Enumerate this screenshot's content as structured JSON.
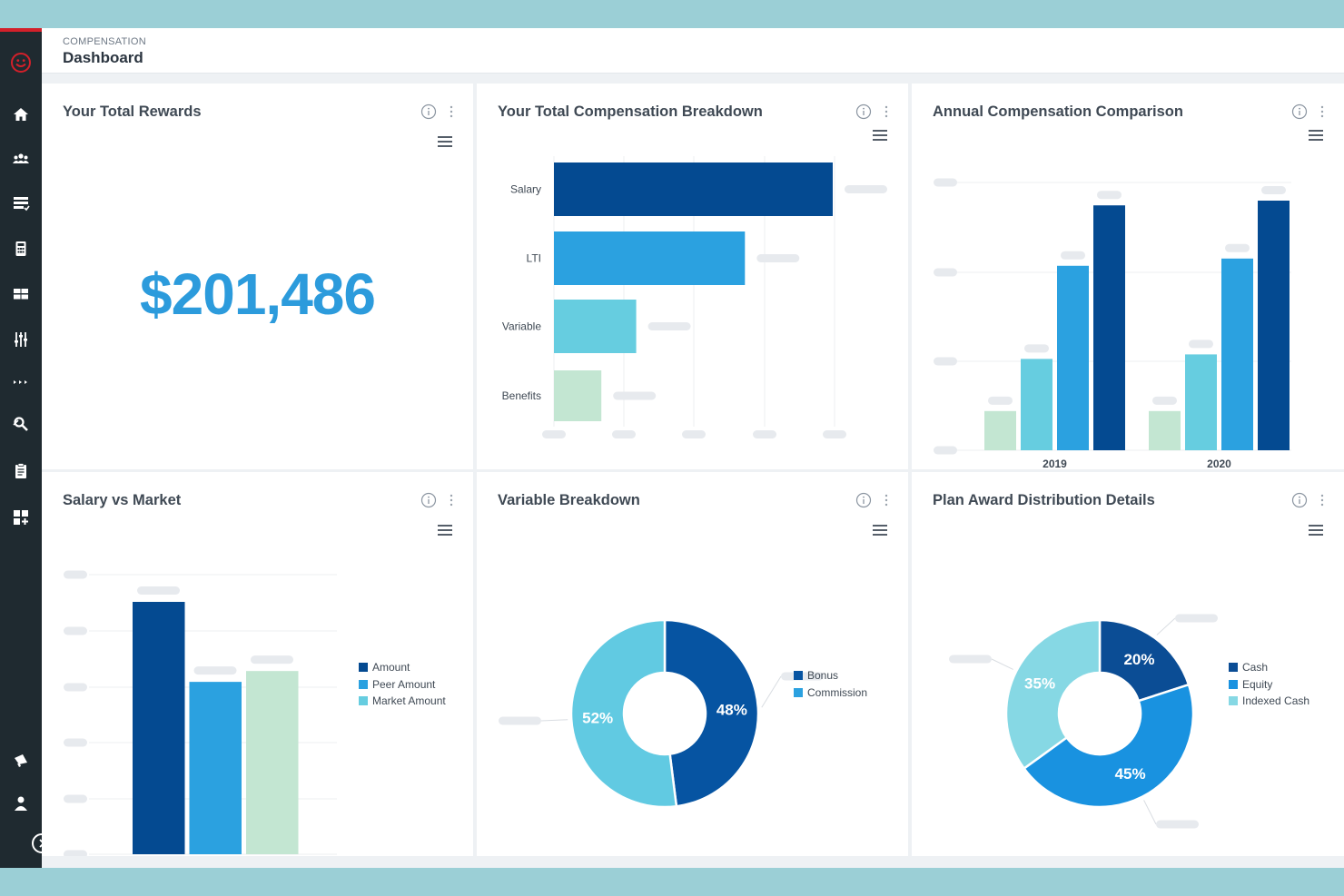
{
  "header": {
    "breadcrumb": "COMPENSATION",
    "title": "Dashboard"
  },
  "sidebar": {
    "icons": [
      "logo-icon",
      "home-icon",
      "team-icon",
      "list-icon",
      "calculator-icon",
      "grid-icon",
      "sliders-icon",
      "more-icon",
      "search-tool-icon",
      "clipboard-icon",
      "add-widget-icon",
      "megaphone-icon",
      "user-icon"
    ]
  },
  "colors": {
    "accent": "#2c9bdc",
    "navy": "#044a91",
    "blue": "#2ba1e0",
    "teal": "#66cde0",
    "mint": "#c3e6d2",
    "sidebar": "#1f2a30",
    "brand_red": "#d3202a"
  },
  "cards": {
    "total_rewards": {
      "title": "Your Total Rewards",
      "value": "$201,486"
    },
    "breakdown": {
      "title": "Your Total Compensation Breakdown"
    },
    "annual": {
      "title": "Annual Compensation Comparison"
    },
    "salary_market": {
      "title": "Salary vs Market"
    },
    "variable": {
      "title": "Variable Breakdown"
    },
    "plan_award": {
      "title": "Plan Award Distribution Details"
    }
  },
  "chart_data": [
    {
      "type": "bar",
      "orientation": "horizontal",
      "title": "Your Total Compensation Breakdown",
      "categories": [
        "Salary",
        "LTI",
        "Variable",
        "Benefits"
      ],
      "values": [
        100,
        68.5,
        29.5,
        17
      ],
      "colors": [
        "#044a91",
        "#2ba1e0",
        "#66cde0",
        "#c3e6d2"
      ],
      "grid": true
    },
    {
      "type": "bar",
      "title": "Annual Compensation Comparison",
      "categories": [
        "2019",
        "2020"
      ],
      "series": [
        {
          "values": [
            15.7,
            15.7
          ]
        },
        {
          "values": [
            36.6,
            38.4
          ]
        },
        {
          "values": [
            73.9,
            76.8
          ]
        },
        {
          "values": [
            98.1,
            100
          ]
        }
      ],
      "colors": [
        "#c3e6d2",
        "#66cde0",
        "#2ba1e0",
        "#044a91"
      ],
      "grid": true
    },
    {
      "type": "bar",
      "title": "Salary vs Market",
      "series": [
        {
          "name": "Amount",
          "values": [
            100
          ]
        },
        {
          "name": "Peer Amount",
          "values": [
            68.3
          ]
        },
        {
          "name": "Market Amount",
          "values": [
            72.6
          ]
        }
      ],
      "colors": [
        "#044a91",
        "#2ba1e0",
        "#c3e6d2"
      ],
      "legend_colors": [
        "#044a91",
        "#2ba1e0",
        "#66cde0"
      ],
      "legend": "right",
      "grid": true
    },
    {
      "type": "pie",
      "donut": true,
      "title": "Variable Breakdown",
      "labels": [
        "Bonus",
        "Commission"
      ],
      "values": [
        48,
        52
      ],
      "value_labels": [
        "48%",
        "52%"
      ],
      "colors": [
        "#0654a2",
        "#61cae2"
      ],
      "legend": "right"
    },
    {
      "type": "pie",
      "donut": true,
      "title": "Plan Award Distribution Details",
      "labels": [
        "Cash",
        "Equity",
        "Indexed Cash"
      ],
      "values": [
        20,
        45,
        35
      ],
      "value_labels": [
        "20%",
        "45%",
        "35%"
      ],
      "colors": [
        "#0b4d95",
        "#1992e0",
        "#86d8e4"
      ],
      "legend": "right"
    }
  ]
}
